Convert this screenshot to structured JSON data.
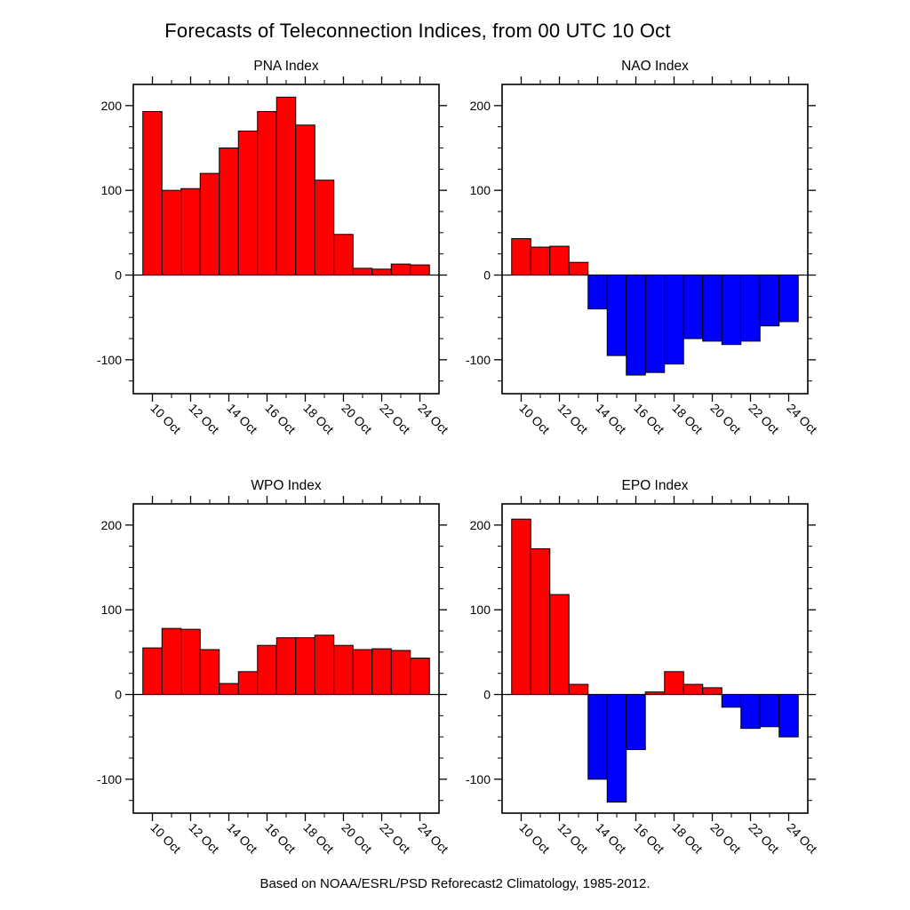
{
  "figure": {
    "title": "Forecasts of Teleconnection Indices, from 00 UTC 10 Oct",
    "caption": "Based on NOAA/ESRL/PSD Reforecast2 Climatology, 1985-2012."
  },
  "colors": {
    "positive_bar": "#ff0000",
    "negative_bar": "#0000ff",
    "axis": "#000000",
    "background": "#ffffff"
  },
  "chart_data": [
    {
      "type": "bar",
      "title": "PNA Index",
      "x": [
        10,
        11,
        12,
        13,
        14,
        15,
        16,
        17,
        18,
        19,
        20,
        21,
        22,
        23,
        24
      ],
      "values": [
        193,
        100,
        102,
        120,
        150,
        170,
        193,
        210,
        177,
        112,
        48,
        8,
        7,
        13,
        12
      ],
      "x_ticks": [
        10,
        12,
        14,
        16,
        18,
        20,
        22,
        24
      ],
      "x_tick_labels": [
        "10 Oct",
        "12 Oct",
        "14 Oct",
        "16 Oct",
        "18 Oct",
        "20 Oct",
        "22 Oct",
        "24 Oct"
      ],
      "y_ticks": [
        -100,
        0,
        100,
        200
      ],
      "ylim": [
        -140,
        225
      ],
      "xlim": [
        9,
        25
      ],
      "xlabel": "",
      "ylabel": "",
      "grid": false,
      "legend": "none",
      "bar_width_days": 1
    },
    {
      "type": "bar",
      "title": "NAO Index",
      "x": [
        10,
        11,
        12,
        13,
        14,
        15,
        16,
        17,
        18,
        19,
        20,
        21,
        22,
        23,
        24
      ],
      "values": [
        43,
        33,
        34,
        15,
        -40,
        -95,
        -118,
        -115,
        -105,
        -75,
        -78,
        -82,
        -78,
        -60,
        -55
      ],
      "x_ticks": [
        10,
        12,
        14,
        16,
        18,
        20,
        22,
        24
      ],
      "x_tick_labels": [
        "10 Oct",
        "12 Oct",
        "14 Oct",
        "16 Oct",
        "18 Oct",
        "20 Oct",
        "22 Oct",
        "24 Oct"
      ],
      "y_ticks": [
        -100,
        0,
        100,
        200
      ],
      "ylim": [
        -140,
        225
      ],
      "xlim": [
        9,
        25
      ],
      "xlabel": "",
      "ylabel": "",
      "grid": false,
      "legend": "none",
      "bar_width_days": 1
    },
    {
      "type": "bar",
      "title": "WPO Index",
      "x": [
        10,
        11,
        12,
        13,
        14,
        15,
        16,
        17,
        18,
        19,
        20,
        21,
        22,
        23,
        24
      ],
      "values": [
        55,
        78,
        77,
        53,
        13,
        27,
        58,
        67,
        67,
        70,
        58,
        53,
        54,
        52,
        43
      ],
      "x_ticks": [
        10,
        12,
        14,
        16,
        18,
        20,
        22,
        24
      ],
      "x_tick_labels": [
        "10 Oct",
        "12 Oct",
        "14 Oct",
        "16 Oct",
        "18 Oct",
        "20 Oct",
        "22 Oct",
        "24 Oct"
      ],
      "y_ticks": [
        -100,
        0,
        100,
        200
      ],
      "ylim": [
        -140,
        225
      ],
      "xlim": [
        9,
        25
      ],
      "xlabel": "",
      "ylabel": "",
      "grid": false,
      "legend": "none",
      "bar_width_days": 1
    },
    {
      "type": "bar",
      "title": "EPO Index",
      "x": [
        10,
        11,
        12,
        13,
        14,
        15,
        16,
        17,
        18,
        19,
        20,
        21,
        22,
        23,
        24
      ],
      "values": [
        207,
        172,
        118,
        12,
        -100,
        -127,
        -65,
        3,
        27,
        12,
        8,
        -15,
        -40,
        -38,
        -50
      ],
      "x_ticks": [
        10,
        12,
        14,
        16,
        18,
        20,
        22,
        24
      ],
      "x_tick_labels": [
        "10 Oct",
        "12 Oct",
        "14 Oct",
        "16 Oct",
        "18 Oct",
        "20 Oct",
        "22 Oct",
        "24 Oct"
      ],
      "y_ticks": [
        -100,
        0,
        100,
        200
      ],
      "ylim": [
        -140,
        225
      ],
      "xlim": [
        9,
        25
      ],
      "xlabel": "",
      "ylabel": "",
      "grid": false,
      "legend": "none",
      "bar_width_days": 1
    }
  ]
}
